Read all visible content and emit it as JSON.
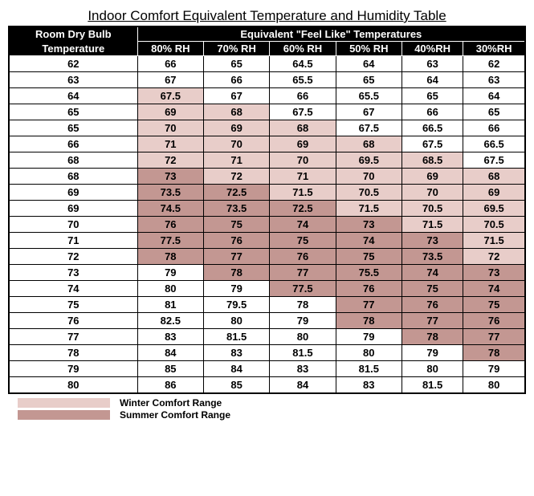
{
  "title": "Indoor Comfort Equivalent Temperature and Humidity Table",
  "header": {
    "col1_line1": "Room Dry Bulb",
    "col1_line2": "Temperature",
    "span_label": "Equivalent \"Feel Like\" Temperatures",
    "cols": [
      "80% RH",
      "70% RH",
      "60% RH",
      "50% RH",
      "40%RH",
      "30%RH"
    ]
  },
  "colors": {
    "winter": "#e8cdc9",
    "summer": "#c39792",
    "header_bg": "#000000",
    "header_fg": "#ffffff",
    "cell_bg": "#ffffff",
    "border": "#000000"
  },
  "legend": {
    "winter": "Winter Comfort Range",
    "summer": "Summer Comfort Range"
  },
  "rows": [
    {
      "dry": "62",
      "vals": [
        {
          "v": "66",
          "c": ""
        },
        {
          "v": "65",
          "c": ""
        },
        {
          "v": "64.5",
          "c": ""
        },
        {
          "v": "64",
          "c": ""
        },
        {
          "v": "63",
          "c": ""
        },
        {
          "v": "62",
          "c": ""
        }
      ]
    },
    {
      "dry": "63",
      "vals": [
        {
          "v": "67",
          "c": ""
        },
        {
          "v": "66",
          "c": ""
        },
        {
          "v": "65.5",
          "c": ""
        },
        {
          "v": "65",
          "c": ""
        },
        {
          "v": "64",
          "c": ""
        },
        {
          "v": "63",
          "c": ""
        }
      ]
    },
    {
      "dry": "64",
      "vals": [
        {
          "v": "67.5",
          "c": "winter"
        },
        {
          "v": "67",
          "c": ""
        },
        {
          "v": "66",
          "c": ""
        },
        {
          "v": "65.5",
          "c": ""
        },
        {
          "v": "65",
          "c": ""
        },
        {
          "v": "64",
          "c": ""
        }
      ]
    },
    {
      "dry": "65",
      "vals": [
        {
          "v": "69",
          "c": "winter"
        },
        {
          "v": "68",
          "c": "winter"
        },
        {
          "v": "67.5",
          "c": ""
        },
        {
          "v": "67",
          "c": ""
        },
        {
          "v": "66",
          "c": ""
        },
        {
          "v": "65",
          "c": ""
        }
      ]
    },
    {
      "dry": "65",
      "vals": [
        {
          "v": "70",
          "c": "winter"
        },
        {
          "v": "69",
          "c": "winter"
        },
        {
          "v": "68",
          "c": "winter"
        },
        {
          "v": "67.5",
          "c": ""
        },
        {
          "v": "66.5",
          "c": ""
        },
        {
          "v": "66",
          "c": ""
        }
      ]
    },
    {
      "dry": "66",
      "vals": [
        {
          "v": "71",
          "c": "winter"
        },
        {
          "v": "70",
          "c": "winter"
        },
        {
          "v": "69",
          "c": "winter"
        },
        {
          "v": "68",
          "c": "winter"
        },
        {
          "v": "67.5",
          "c": ""
        },
        {
          "v": "66.5",
          "c": ""
        }
      ]
    },
    {
      "dry": "68",
      "vals": [
        {
          "v": "72",
          "c": "winter"
        },
        {
          "v": "71",
          "c": "winter"
        },
        {
          "v": "70",
          "c": "winter"
        },
        {
          "v": "69.5",
          "c": "winter"
        },
        {
          "v": "68.5",
          "c": "winter"
        },
        {
          "v": "67.5",
          "c": ""
        }
      ]
    },
    {
      "dry": "68",
      "vals": [
        {
          "v": "73",
          "c": "summer"
        },
        {
          "v": "72",
          "c": "winter"
        },
        {
          "v": "71",
          "c": "winter"
        },
        {
          "v": "70",
          "c": "winter"
        },
        {
          "v": "69",
          "c": "winter"
        },
        {
          "v": "68",
          "c": "winter"
        }
      ]
    },
    {
      "dry": "69",
      "vals": [
        {
          "v": "73.5",
          "c": "summer"
        },
        {
          "v": "72.5",
          "c": "summer"
        },
        {
          "v": "71.5",
          "c": "winter"
        },
        {
          "v": "70.5",
          "c": "winter"
        },
        {
          "v": "70",
          "c": "winter"
        },
        {
          "v": "69",
          "c": "winter"
        }
      ]
    },
    {
      "dry": "69",
      "vals": [
        {
          "v": "74.5",
          "c": "summer"
        },
        {
          "v": "73.5",
          "c": "summer"
        },
        {
          "v": "72.5",
          "c": "summer"
        },
        {
          "v": "71.5",
          "c": "winter"
        },
        {
          "v": "70.5",
          "c": "winter"
        },
        {
          "v": "69.5",
          "c": "winter"
        }
      ]
    },
    {
      "dry": "70",
      "vals": [
        {
          "v": "76",
          "c": "summer"
        },
        {
          "v": "75",
          "c": "summer"
        },
        {
          "v": "74",
          "c": "summer"
        },
        {
          "v": "73",
          "c": "summer"
        },
        {
          "v": "71.5",
          "c": "winter"
        },
        {
          "v": "70.5",
          "c": "winter"
        }
      ]
    },
    {
      "dry": "71",
      "vals": [
        {
          "v": "77.5",
          "c": "summer"
        },
        {
          "v": "76",
          "c": "summer"
        },
        {
          "v": "75",
          "c": "summer"
        },
        {
          "v": "74",
          "c": "summer"
        },
        {
          "v": "73",
          "c": "summer"
        },
        {
          "v": "71.5",
          "c": "winter"
        }
      ]
    },
    {
      "dry": "72",
      "vals": [
        {
          "v": "78",
          "c": "summer"
        },
        {
          "v": "77",
          "c": "summer"
        },
        {
          "v": "76",
          "c": "summer"
        },
        {
          "v": "75",
          "c": "summer"
        },
        {
          "v": "73.5",
          "c": "summer"
        },
        {
          "v": "72",
          "c": "winter"
        }
      ]
    },
    {
      "dry": "73",
      "vals": [
        {
          "v": "79",
          "c": ""
        },
        {
          "v": "78",
          "c": "summer"
        },
        {
          "v": "77",
          "c": "summer"
        },
        {
          "v": "75.5",
          "c": "summer"
        },
        {
          "v": "74",
          "c": "summer"
        },
        {
          "v": "73",
          "c": "summer"
        }
      ]
    },
    {
      "dry": "74",
      "vals": [
        {
          "v": "80",
          "c": ""
        },
        {
          "v": "79",
          "c": ""
        },
        {
          "v": "77.5",
          "c": "summer"
        },
        {
          "v": "76",
          "c": "summer"
        },
        {
          "v": "75",
          "c": "summer"
        },
        {
          "v": "74",
          "c": "summer"
        }
      ]
    },
    {
      "dry": "75",
      "vals": [
        {
          "v": "81",
          "c": ""
        },
        {
          "v": "79.5",
          "c": ""
        },
        {
          "v": "78",
          "c": ""
        },
        {
          "v": "77",
          "c": "summer"
        },
        {
          "v": "76",
          "c": "summer"
        },
        {
          "v": "75",
          "c": "summer"
        }
      ]
    },
    {
      "dry": "76",
      "vals": [
        {
          "v": "82.5",
          "c": ""
        },
        {
          "v": "80",
          "c": ""
        },
        {
          "v": "79",
          "c": ""
        },
        {
          "v": "78",
          "c": "summer"
        },
        {
          "v": "77",
          "c": "summer"
        },
        {
          "v": "76",
          "c": "summer"
        }
      ]
    },
    {
      "dry": "77",
      "vals": [
        {
          "v": "83",
          "c": ""
        },
        {
          "v": "81.5",
          "c": ""
        },
        {
          "v": "80",
          "c": ""
        },
        {
          "v": "79",
          "c": ""
        },
        {
          "v": "78",
          "c": "summer"
        },
        {
          "v": "77",
          "c": "summer"
        }
      ]
    },
    {
      "dry": "78",
      "vals": [
        {
          "v": "84",
          "c": ""
        },
        {
          "v": "83",
          "c": ""
        },
        {
          "v": "81.5",
          "c": ""
        },
        {
          "v": "80",
          "c": ""
        },
        {
          "v": "79",
          "c": ""
        },
        {
          "v": "78",
          "c": "summer"
        }
      ]
    },
    {
      "dry": "79",
      "vals": [
        {
          "v": "85",
          "c": ""
        },
        {
          "v": "84",
          "c": ""
        },
        {
          "v": "83",
          "c": ""
        },
        {
          "v": "81.5",
          "c": ""
        },
        {
          "v": "80",
          "c": ""
        },
        {
          "v": "79",
          "c": ""
        }
      ]
    },
    {
      "dry": "80",
      "vals": [
        {
          "v": "86",
          "c": ""
        },
        {
          "v": "85",
          "c": ""
        },
        {
          "v": "84",
          "c": ""
        },
        {
          "v": "83",
          "c": ""
        },
        {
          "v": "81.5",
          "c": ""
        },
        {
          "v": "80",
          "c": ""
        }
      ]
    }
  ]
}
